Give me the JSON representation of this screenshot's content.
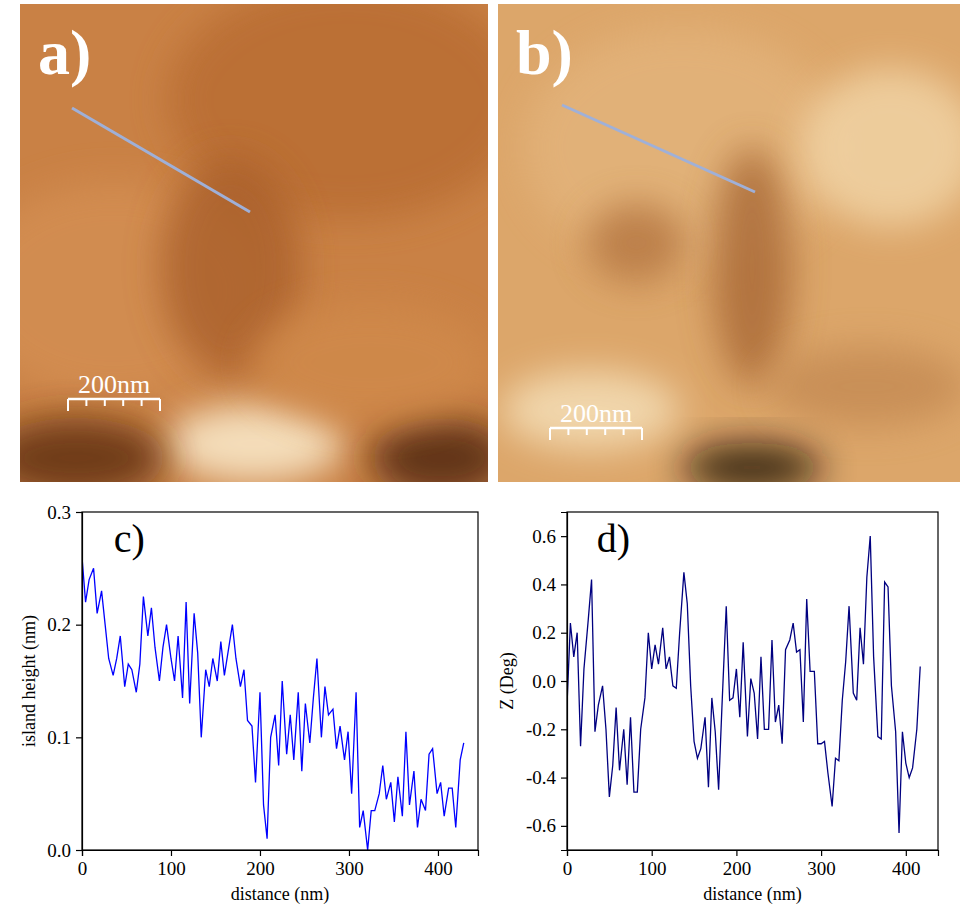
{
  "images": [
    {
      "label": "a)",
      "scale_bar": "200nm"
    },
    {
      "label": "b)",
      "scale_bar": "200nm"
    }
  ],
  "chart_data": [
    {
      "type": "line",
      "panel": "c)",
      "x_label": "distance (nm)",
      "y_label": "island height (nm)",
      "color": "#0000ff",
      "xlim": [
        0,
        445
      ],
      "xticks": [
        0,
        100,
        200,
        300,
        400
      ],
      "ylim": [
        0,
        0.3
      ],
      "yticks": [
        {
          "value": 0,
          "label": "0.0"
        },
        {
          "value": 0.1,
          "label": "0.1"
        },
        {
          "value": 0.2,
          "label": "0.2"
        },
        {
          "value": 0.3,
          "label": "0.3"
        }
      ],
      "x": [
        0,
        4,
        8,
        13,
        17,
        22,
        26,
        30,
        35,
        39,
        43,
        48,
        52,
        56,
        61,
        65,
        69,
        74,
        78,
        82,
        87,
        91,
        95,
        100,
        104,
        108,
        113,
        117,
        121,
        126,
        130,
        134,
        139,
        143,
        147,
        152,
        156,
        160,
        165,
        169,
        173,
        178,
        182,
        186,
        191,
        195,
        200,
        204,
        208,
        212,
        217,
        221,
        225,
        230,
        234,
        238,
        243,
        247,
        251,
        256,
        260,
        264,
        269,
        273,
        277,
        282,
        286,
        290,
        295,
        299,
        303,
        308,
        312,
        316,
        321,
        325,
        329,
        334,
        338,
        342,
        347,
        351,
        355,
        360,
        364,
        368,
        373,
        377,
        381,
        386,
        390,
        394,
        399,
        403,
        407,
        412,
        416,
        420,
        425,
        429
      ],
      "values": [
        0.26,
        0.22,
        0.24,
        0.25,
        0.21,
        0.23,
        0.2,
        0.17,
        0.155,
        0.17,
        0.19,
        0.145,
        0.165,
        0.16,
        0.14,
        0.165,
        0.225,
        0.19,
        0.215,
        0.18,
        0.15,
        0.18,
        0.2,
        0.17,
        0.15,
        0.19,
        0.135,
        0.22,
        0.13,
        0.21,
        0.175,
        0.1,
        0.16,
        0.145,
        0.17,
        0.15,
        0.185,
        0.155,
        0.18,
        0.2,
        0.17,
        0.145,
        0.16,
        0.115,
        0.11,
        0.06,
        0.14,
        0.04,
        0.01,
        0.1,
        0.12,
        0.075,
        0.15,
        0.085,
        0.12,
        0.08,
        0.14,
        0.07,
        0.13,
        0.095,
        0.135,
        0.17,
        0.1,
        0.145,
        0.12,
        0.125,
        0.09,
        0.11,
        0.08,
        0.105,
        0.05,
        0.14,
        0.02,
        0.035,
        0.0,
        0.035,
        0.035,
        0.05,
        0.075,
        0.045,
        0.06,
        0.025,
        0.065,
        0.03,
        0.105,
        0.04,
        0.07,
        0.02,
        0.045,
        0.035,
        0.085,
        0.09,
        0.05,
        0.06,
        0.03,
        0.055,
        0.055,
        0.02,
        0.08,
        0.095
      ]
    },
    {
      "type": "line",
      "panel": "d)",
      "x_label": "distance (nm)",
      "y_label": "Z (Deg)",
      "color": "#000080",
      "xlim": [
        0,
        438
      ],
      "xticks": [
        0,
        100,
        200,
        300,
        400
      ],
      "ylim": [
        -0.7,
        0.7
      ],
      "yticks": [
        -0.6,
        -0.4,
        -0.2,
        {
          "value": 0,
          "label": "0.0"
        },
        0.2,
        0.4,
        0.6
      ],
      "x": [
        0,
        4,
        8,
        12,
        16,
        20,
        25,
        29,
        33,
        37,
        42,
        46,
        50,
        54,
        58,
        62,
        67,
        71,
        75,
        79,
        83,
        87,
        92,
        96,
        100,
        104,
        108,
        113,
        117,
        121,
        125,
        129,
        133,
        138,
        142,
        146,
        150,
        154,
        158,
        163,
        167,
        171,
        175,
        179,
        183,
        188,
        192,
        196,
        200,
        204,
        208,
        213,
        217,
        221,
        225,
        229,
        233,
        238,
        242,
        246,
        250,
        254,
        258,
        263,
        267,
        271,
        275,
        279,
        283,
        287,
        292,
        296,
        300,
        304,
        308,
        313,
        317,
        321,
        325,
        329,
        333,
        338,
        342,
        346,
        350,
        354,
        358,
        362,
        367,
        371,
        375,
        379,
        383,
        388,
        392,
        396,
        400,
        404,
        408,
        413,
        417
      ],
      "values": [
        -0.1,
        0.24,
        0.1,
        0.2,
        -0.27,
        0.05,
        0.25,
        0.42,
        -0.21,
        -0.1,
        -0.02,
        -0.2,
        -0.48,
        -0.35,
        -0.11,
        -0.37,
        -0.2,
        -0.43,
        -0.15,
        -0.46,
        -0.46,
        -0.2,
        -0.07,
        0.2,
        0.05,
        0.15,
        0.07,
        0.22,
        0.05,
        0.1,
        -0.02,
        -0.03,
        0.2,
        0.45,
        0.32,
        -0.02,
        -0.25,
        -0.32,
        -0.28,
        -0.15,
        -0.44,
        -0.07,
        -0.21,
        -0.45,
        -0.1,
        0.31,
        -0.08,
        -0.07,
        0.05,
        -0.15,
        0.16,
        -0.23,
        0.01,
        -0.05,
        -0.24,
        0.1,
        -0.2,
        -0.2,
        0.17,
        -0.17,
        -0.1,
        -0.26,
        0.13,
        0.17,
        0.24,
        0.12,
        0.13,
        -0.17,
        0.34,
        0.04,
        0.04,
        -0.26,
        -0.26,
        -0.25,
        -0.38,
        -0.52,
        -0.32,
        -0.33,
        -0.08,
        0.08,
        0.31,
        -0.05,
        -0.08,
        0.22,
        0.07,
        0.43,
        0.6,
        0.1,
        -0.23,
        -0.24,
        0.41,
        0.39,
        -0.02,
        -0.21,
        -0.63,
        -0.21,
        -0.34,
        -0.4,
        -0.36,
        -0.2,
        0.06
      ]
    }
  ]
}
